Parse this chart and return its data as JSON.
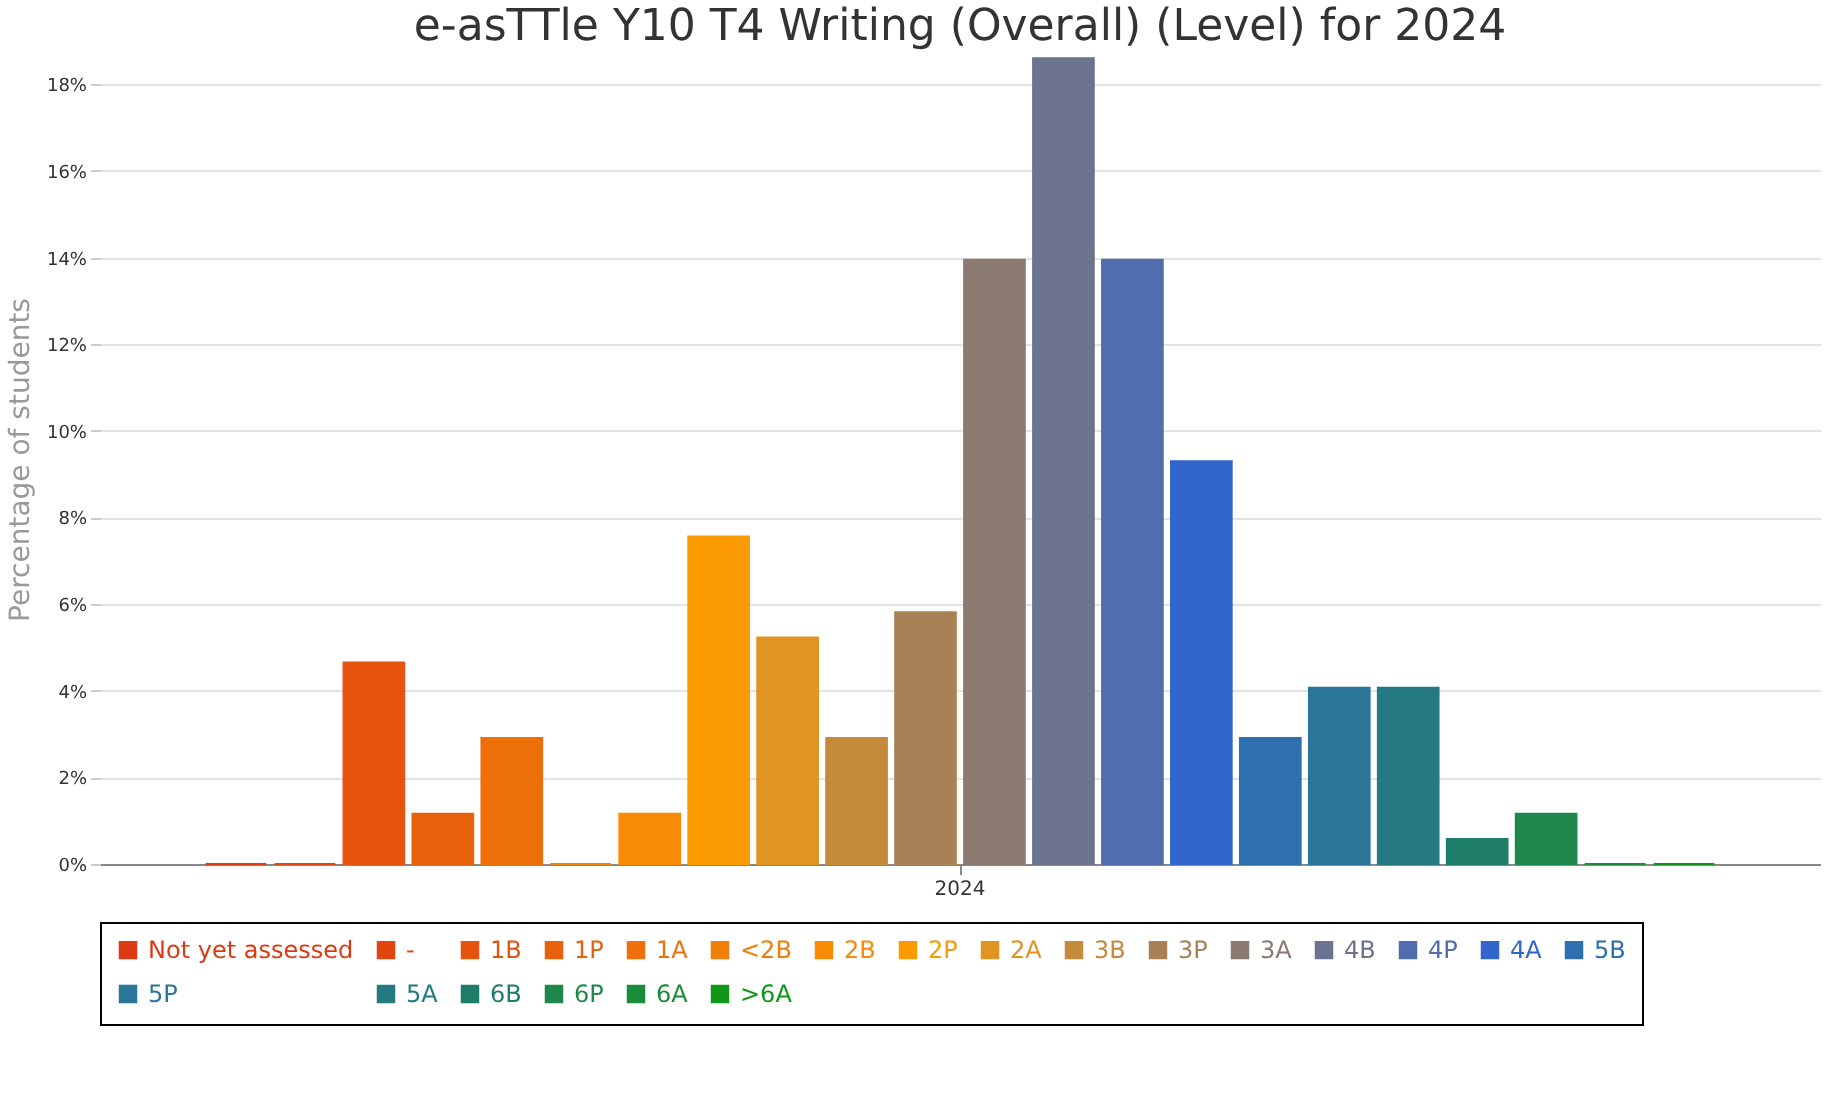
{
  "chart_data": {
    "type": "bar",
    "title": "e-asTTle Y10 T4 Writing (Overall) (Level) for 2024",
    "ylabel": "Percentage of students",
    "categories": [
      "2024"
    ],
    "series": [
      {
        "name": "Not yet assessed",
        "color": "#dc3912",
        "values": [
          0
        ]
      },
      {
        "name": "-",
        "color": "#e2450f",
        "values": [
          0
        ]
      },
      {
        "name": "1B",
        "color": "#e5530f",
        "values": [
          4.65
        ]
      },
      {
        "name": "1P",
        "color": "#e8610c",
        "values": [
          1.16
        ]
      },
      {
        "name": "1A",
        "color": "#ed700b",
        "values": [
          2.91
        ]
      },
      {
        "name": "<2B",
        "color": "#f07f0a",
        "values": [
          0
        ]
      },
      {
        "name": "2B",
        "color": "#f98a05",
        "values": [
          1.16
        ]
      },
      {
        "name": "2P",
        "color": "#fb9a00",
        "values": [
          7.56
        ]
      },
      {
        "name": "2A",
        "color": "#e09422",
        "values": [
          5.23
        ]
      },
      {
        "name": "3B",
        "color": "#c58a3c",
        "values": [
          2.91
        ]
      },
      {
        "name": "3P",
        "color": "#a88256",
        "values": [
          5.81
        ]
      },
      {
        "name": "3A",
        "color": "#8a7a70",
        "values": [
          13.95
        ]
      },
      {
        "name": "4B",
        "color": "#6c738f",
        "values": [
          18.6
        ]
      },
      {
        "name": "4P",
        "color": "#516dae",
        "values": [
          13.95
        ]
      },
      {
        "name": "4A",
        "color": "#3366cc",
        "values": [
          9.3
        ]
      },
      {
        "name": "5B",
        "color": "#2e6fb0",
        "values": [
          2.91
        ]
      },
      {
        "name": "5P",
        "color": "#2b7598",
        "values": [
          4.07
        ]
      },
      {
        "name": "5A",
        "color": "#247a80",
        "values": [
          4.07
        ]
      },
      {
        "name": "6B",
        "color": "#1e7d68",
        "values": [
          0.58
        ]
      },
      {
        "name": "6P",
        "color": "#1f884c",
        "values": [
          1.16
        ]
      },
      {
        "name": "6A",
        "color": "#1a8c3a",
        "values": [
          0
        ]
      },
      {
        "name": ">6A",
        "color": "#109618",
        "values": [
          0
        ]
      }
    ],
    "ylim": [
      0,
      18.7
    ],
    "yticks": [
      {
        "value": 0,
        "label": "0%"
      },
      {
        "value": 2,
        "label": "2%"
      },
      {
        "value": 4,
        "label": "4%"
      },
      {
        "value": 6,
        "label": "6%"
      },
      {
        "value": 8,
        "label": "8%"
      },
      {
        "value": 10,
        "label": "10%"
      },
      {
        "value": 12,
        "label": "12%"
      },
      {
        "value": 14,
        "label": "14%"
      },
      {
        "value": 16,
        "label": "16%"
      },
      {
        "value": 18,
        "label": "18%"
      }
    ],
    "grid": "y",
    "legend": "bottom"
  }
}
